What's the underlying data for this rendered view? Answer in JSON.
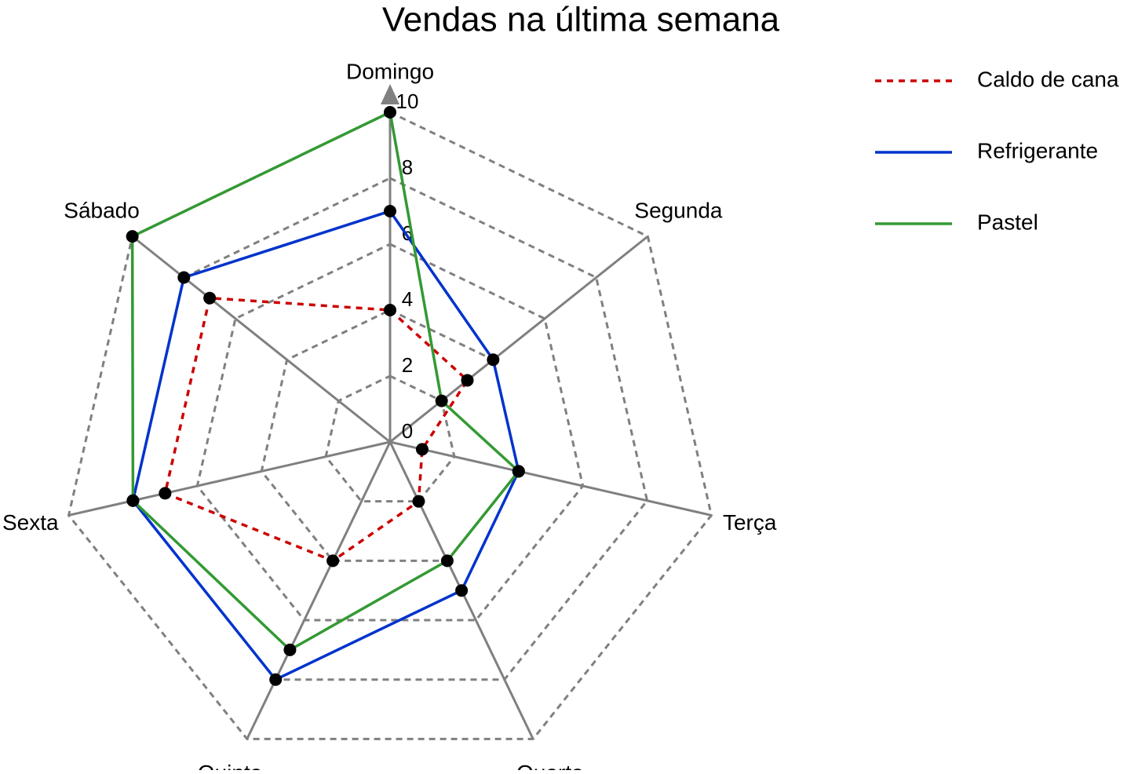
{
  "chart_data": {
    "type": "radar",
    "title": "Vendas na última semana",
    "categories": [
      "Domingo",
      "Segunda",
      "Terça",
      "Quarta",
      "Quinta",
      "Sexta",
      "Sábado"
    ],
    "series": [
      {
        "name": "Caldo de cana",
        "color": "#cc0000",
        "dashed": true,
        "values": [
          4,
          3,
          1,
          2,
          4,
          7,
          7
        ]
      },
      {
        "name": "Refrigerante",
        "color": "#0033cc",
        "dashed": false,
        "values": [
          7,
          4,
          4,
          5,
          8,
          8,
          8
        ]
      },
      {
        "name": "Pastel",
        "color": "#339933",
        "dashed": false,
        "values": [
          10,
          2,
          4,
          4,
          7,
          8,
          10
        ]
      }
    ],
    "ylim": [
      0,
      10
    ],
    "yticks": [
      0,
      2,
      4,
      6,
      8,
      10
    ],
    "grid": true,
    "legend": "top-right"
  }
}
